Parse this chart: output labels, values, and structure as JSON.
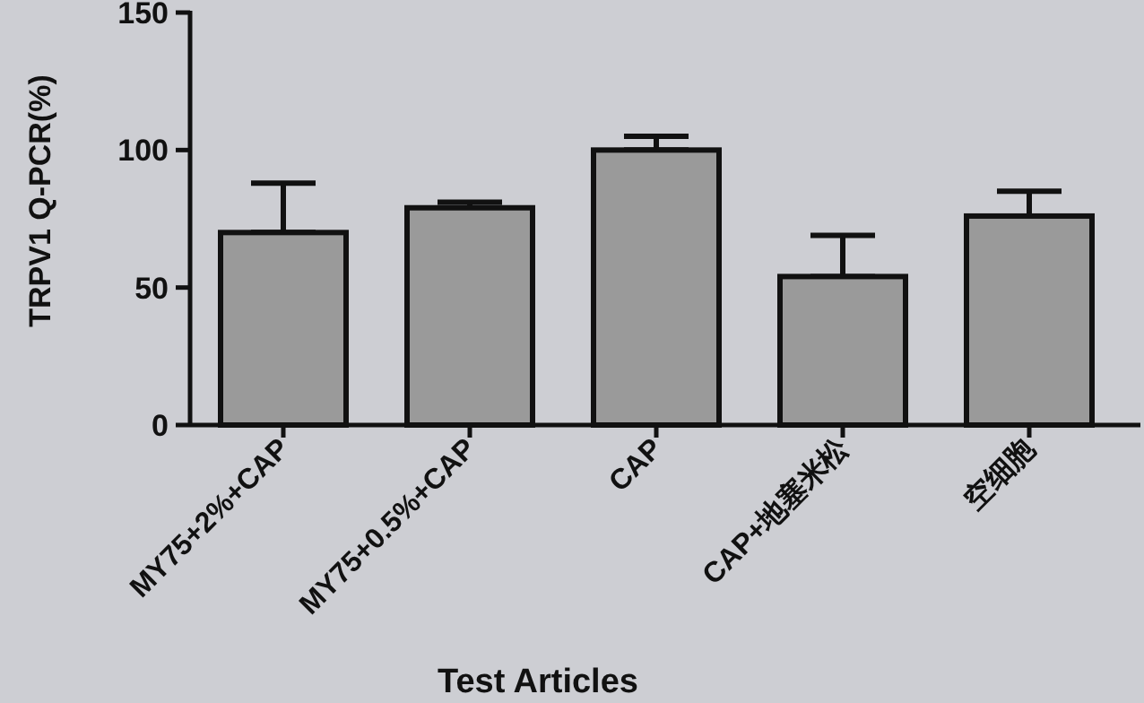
{
  "chart_data": {
    "type": "bar",
    "xlabel": "Test Articles",
    "ylabel": "TRPV1 Q-PCR(%)",
    "categories": [
      "MY75+2%+CAP",
      "MY75+0.5%+CAP",
      "CAP",
      "CAP+地塞米松",
      "空细胞"
    ],
    "values": [
      70,
      79,
      100,
      54,
      76
    ],
    "errors": [
      [
        70,
        88
      ],
      [
        79,
        81
      ],
      [
        100,
        105
      ],
      [
        54,
        69
      ],
      [
        76,
        85
      ]
    ],
    "color": "#9a9a9a",
    "ylim": [
      0,
      150
    ],
    "yticks": [
      0,
      50,
      100,
      150
    ]
  }
}
